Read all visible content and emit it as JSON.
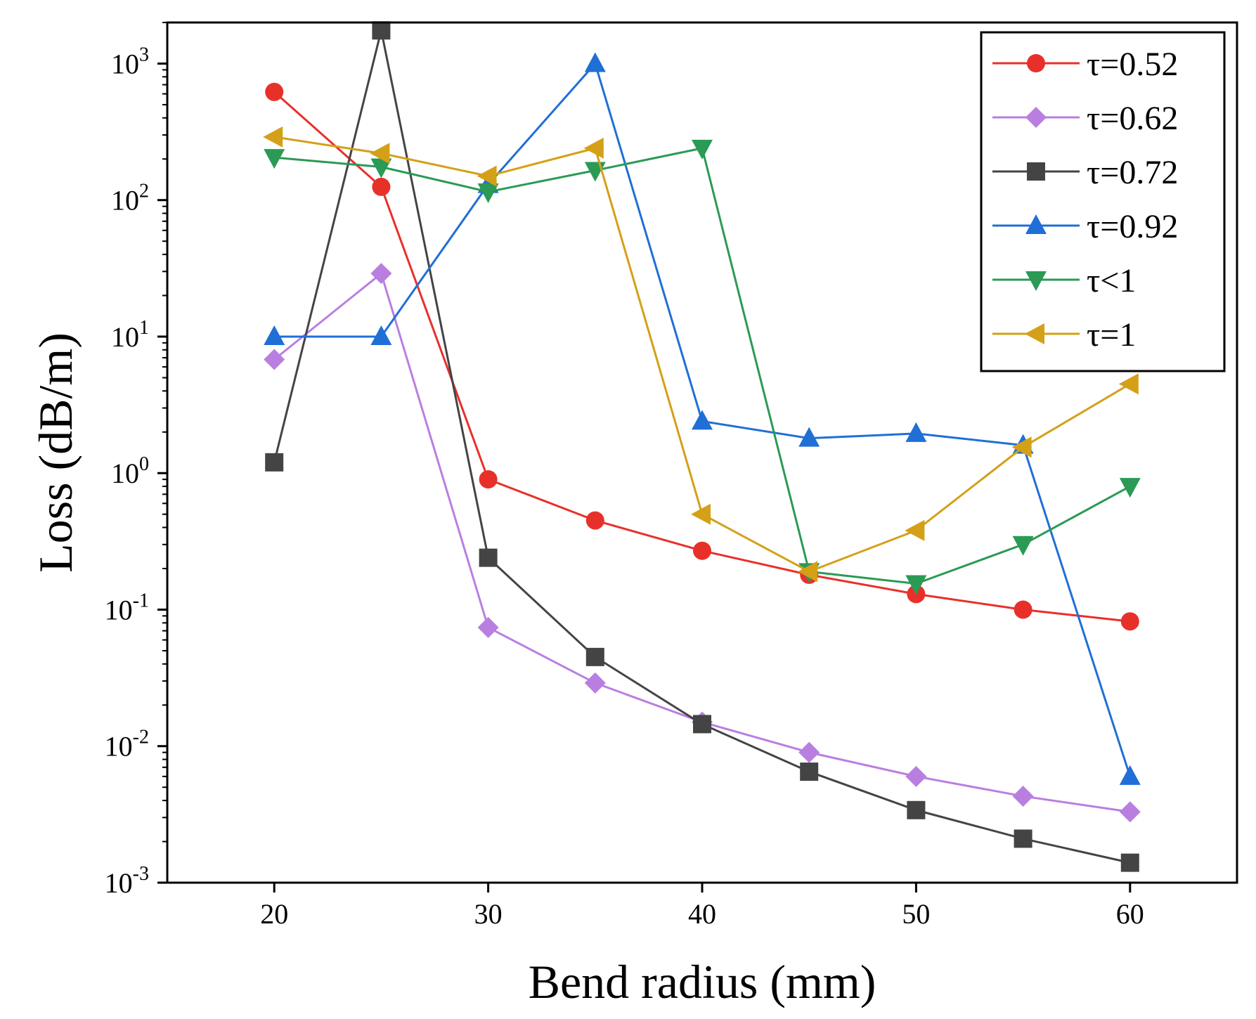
{
  "chart_data": {
    "type": "line",
    "title": "",
    "xlabel": "Bend radius (mm)",
    "ylabel": "Loss (dB/m)",
    "xlim": [
      15,
      65
    ],
    "ylim": [
      0.001,
      2000
    ],
    "yscale": "log",
    "x_ticks": [
      20,
      30,
      40,
      50,
      60
    ],
    "x_tick_labels": [
      "20",
      "30",
      "40",
      "50",
      "60"
    ],
    "y_ticks": [
      {
        "value": 1000,
        "base": "10",
        "exp": "3"
      },
      {
        "value": 100,
        "base": "10",
        "exp": "2"
      },
      {
        "value": 10,
        "base": "10",
        "exp": "1"
      },
      {
        "value": 1,
        "base": "10",
        "exp": "0"
      },
      {
        "value": 0.1,
        "base": "10",
        "exp": "-1"
      },
      {
        "value": 0.01,
        "base": "10",
        "exp": "-2"
      },
      {
        "value": 0.001,
        "base": "10",
        "exp": "-3"
      }
    ],
    "legend_position": "top-right",
    "x": [
      20,
      25,
      30,
      35,
      40,
      45,
      50,
      55,
      60
    ],
    "series": [
      {
        "name": "τ=0.52",
        "color": "#e8302a",
        "marker": "circle",
        "values": [
          620,
          125,
          0.9,
          0.45,
          0.27,
          0.18,
          0.13,
          0.1,
          0.082
        ]
      },
      {
        "name": "τ=0.62",
        "color": "#b97fe0",
        "marker": "diamond",
        "values": [
          6.8,
          29,
          0.074,
          0.029,
          0.015,
          0.009,
          0.006,
          0.0043,
          0.0033
        ]
      },
      {
        "name": "τ=0.72",
        "color": "#444444",
        "marker": "square",
        "values": [
          1.2,
          1750,
          0.24,
          0.045,
          0.0145,
          0.0065,
          0.0034,
          0.0021,
          0.0014
        ]
      },
      {
        "name": "τ=0.92",
        "color": "#1f6fd6",
        "marker": "triangle-up",
        "values": [
          10,
          10,
          130,
          1000,
          2.4,
          1.8,
          1.95,
          1.6,
          0.006
        ]
      },
      {
        "name": "τ<1",
        "color": "#2a9a55",
        "marker": "triangle-down",
        "values": [
          205,
          175,
          115,
          165,
          240,
          0.19,
          0.155,
          0.3,
          0.8
        ]
      },
      {
        "name": "τ=1",
        "color": "#d4a017",
        "marker": "triangle-left",
        "values": [
          290,
          220,
          150,
          240,
          0.5,
          0.19,
          0.38,
          1.55,
          4.5
        ]
      }
    ]
  }
}
